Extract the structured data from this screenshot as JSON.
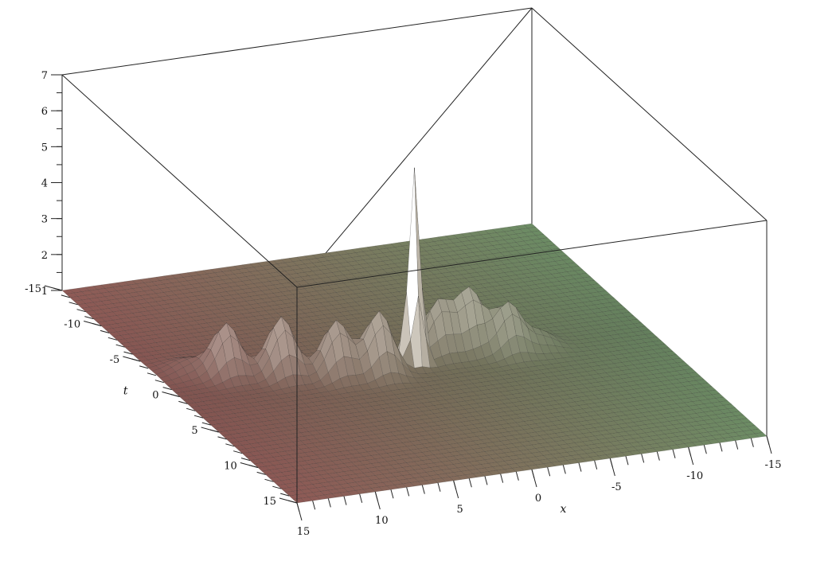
{
  "chart_data": {
    "type": "surface3d",
    "title": "",
    "axes": {
      "x": {
        "label": "x",
        "range": [
          -15,
          15
        ],
        "major_ticks": [
          "-15",
          "-10",
          "-5",
          "0",
          "5",
          "10",
          "15"
        ]
      },
      "t": {
        "label": "t",
        "range": [
          -15,
          15
        ],
        "major_ticks": [
          "-15",
          "-10",
          "-5",
          "0",
          "5",
          "10",
          "15"
        ]
      },
      "z": {
        "label": "",
        "range": [
          0,
          7
        ],
        "major_ticks": [
          "1",
          "2",
          "3",
          "4",
          "5",
          "6",
          "7"
        ]
      }
    },
    "baseline": 1,
    "peaks": [
      {
        "x": 13,
        "t": -3,
        "z": 1.3,
        "w": 0.9
      },
      {
        "x": 11,
        "t": -2,
        "z": 2.4,
        "w": 0.8
      },
      {
        "x": 8,
        "t": -1,
        "z": 2.6,
        "w": 0.8
      },
      {
        "x": 5,
        "t": 0,
        "z": 2.5,
        "w": 0.8
      },
      {
        "x": 2.5,
        "t": 0.5,
        "z": 2.7,
        "w": 0.8
      },
      {
        "x": 0,
        "t": 0,
        "z": 6.4,
        "w": 0.35
      },
      {
        "x": -2,
        "t": -1,
        "z": 2.4,
        "w": 0.8
      },
      {
        "x": -4,
        "t": -1,
        "z": 2.6,
        "w": 0.8
      },
      {
        "x": -6,
        "t": 0,
        "z": 2.3,
        "w": 0.8
      },
      {
        "x": -8,
        "t": 0,
        "z": 1.4,
        "w": 0.8
      }
    ],
    "color_scale": {
      "left": "#8f5a56",
      "right": "#6d8d65",
      "low": "#2a2a2a",
      "high": "#f1ece4"
    },
    "box": true,
    "grid": false
  }
}
